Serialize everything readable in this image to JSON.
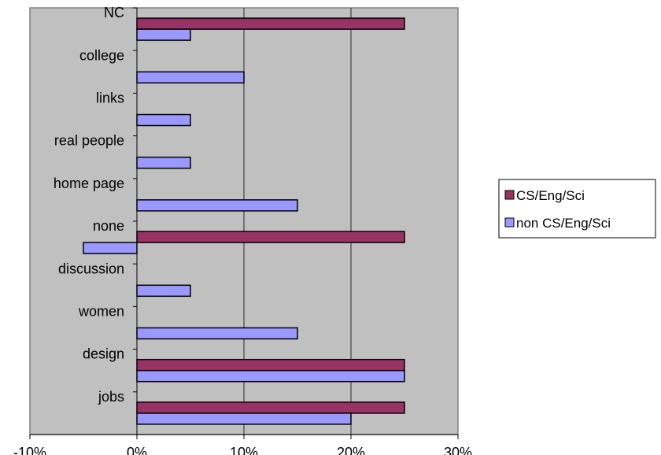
{
  "chart_data": {
    "type": "bar",
    "orientation": "horizontal",
    "categories": [
      "NC",
      "college",
      "links",
      "real people",
      "home page",
      "none",
      "discussion",
      "women",
      "design",
      "jobs"
    ],
    "series": [
      {
        "name": "CS/Eng/Sci",
        "color": "#993366",
        "values": [
          25,
          null,
          null,
          null,
          null,
          25,
          null,
          null,
          25,
          25
        ]
      },
      {
        "name": "non CS/Eng/Sci",
        "color": "#9999ff",
        "values": [
          5,
          10,
          5,
          5,
          15,
          -5,
          5,
          15,
          25,
          20
        ]
      }
    ],
    "x_ticks": [
      "-10%",
      "0%",
      "10%",
      "20%",
      "30%"
    ],
    "xlim": [
      -10,
      30
    ],
    "unit": "%",
    "grid": "vertical major gridlines",
    "plot_background": "#c0c0c0",
    "legend_position": "right"
  }
}
